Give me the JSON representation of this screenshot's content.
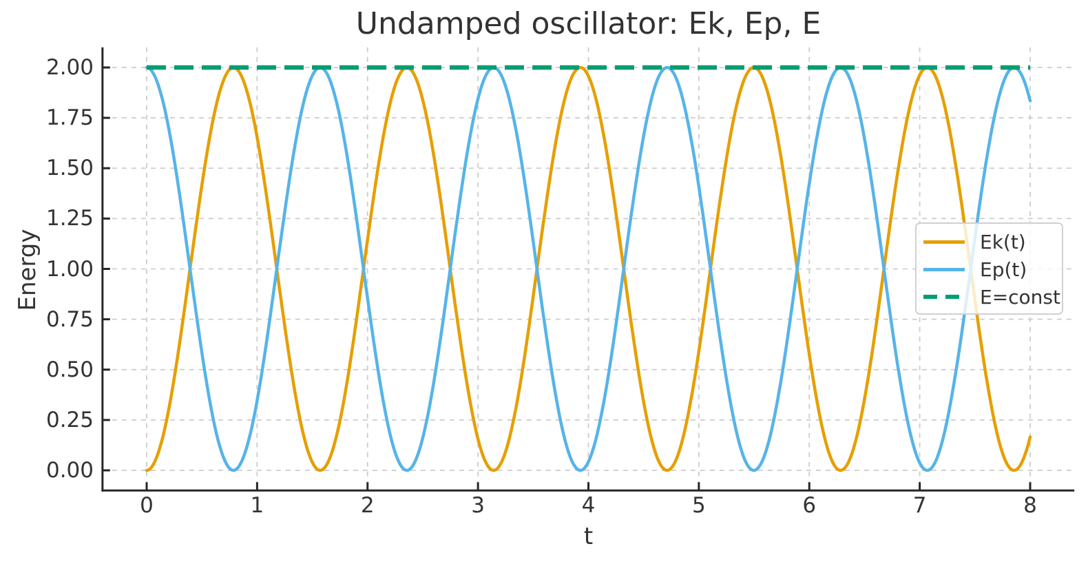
{
  "chart_data": {
    "type": "line",
    "title": "Undamped oscillator: Ek, Ep, E",
    "xlabel": "t",
    "ylabel": "Energy",
    "x_range": [
      0,
      8
    ],
    "xlim": [
      -0.4,
      8.4
    ],
    "ylim": [
      -0.1,
      2.1
    ],
    "x_ticks": [
      0,
      1,
      2,
      3,
      4,
      5,
      6,
      7,
      8
    ],
    "y_ticks": [
      {
        "value": 0.0,
        "label": "0.00"
      },
      {
        "value": 0.25,
        "label": "0.25"
      },
      {
        "value": 0.5,
        "label": "0.50"
      },
      {
        "value": 0.75,
        "label": "0.75"
      },
      {
        "value": 1.0,
        "label": "1.00"
      },
      {
        "value": 1.25,
        "label": "1.25"
      },
      {
        "value": 1.5,
        "label": "1.50"
      },
      {
        "value": 1.75,
        "label": "1.75"
      },
      {
        "value": 2.0,
        "label": "2.00"
      }
    ],
    "grid": {
      "visible": true,
      "style": "dashed",
      "color": "#cccccc"
    },
    "axis_color": "#262626",
    "text_color": "#333333",
    "legend_position": "center right",
    "series": [
      {
        "name": "Ek(t)",
        "kind": "kinetic",
        "formula": "Ek(t) = E*sin^2(omega*t)",
        "amplitude": 2,
        "omega": 2,
        "color": "#E69F00",
        "line_style": "solid"
      },
      {
        "name": "Ep(t)",
        "kind": "potential",
        "formula": "Ep(t) = E*cos^2(omega*t)",
        "amplitude": 2,
        "omega": 2,
        "color": "#56B4E9",
        "line_style": "solid"
      },
      {
        "name": "E=const",
        "kind": "constant",
        "value": 2,
        "color": "#009E73",
        "line_style": "dashed"
      }
    ]
  }
}
